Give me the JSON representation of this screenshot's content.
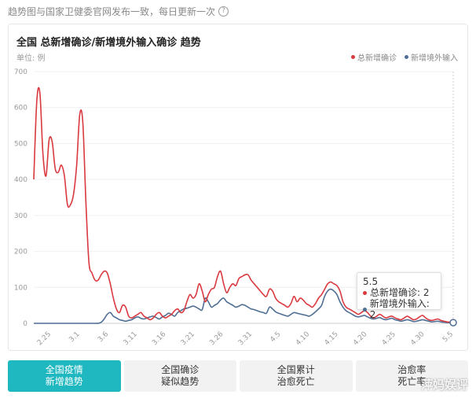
{
  "note": {
    "text": "趋势图与国家卫健委官网发布一致，每日更新一次",
    "icon": "help-icon"
  },
  "card": {
    "title": "全国 总新增确诊/新增境外输入确诊 趋势",
    "unit": "单位: 例"
  },
  "colors": {
    "total": "#d9393f",
    "imported": "#4f6e94",
    "accent": "#1fb7c0"
  },
  "chart_data": {
    "type": "line",
    "ylim": [
      0,
      700
    ],
    "yticks": [
      0,
      100,
      200,
      300,
      400,
      500,
      600,
      700
    ],
    "xlabels": [
      "2.25",
      "3.1",
      "3.6",
      "3.11",
      "3.16",
      "3.21",
      "3.26",
      "3.31",
      "4.5",
      "4.10",
      "4.15",
      "4.20",
      "4.25",
      "4.30",
      "5.5"
    ],
    "series": [
      {
        "name": "总新增确诊",
        "color": "#d9393f",
        "values": [
          400,
          620,
          640,
          470,
          410,
          510,
          505,
          430,
          420,
          440,
          410,
          330,
          330,
          360,
          440,
          580,
          560,
          340,
          170,
          140,
          120,
          120,
          135,
          145,
          140,
          110,
          70,
          40,
          30,
          50,
          45,
          20,
          15,
          20,
          25,
          30,
          20,
          15,
          10,
          15,
          25,
          30,
          20,
          15,
          20,
          25,
          35,
          40,
          30,
          35,
          60,
          80,
          70,
          80,
          110,
          90,
          60,
          80,
          95,
          100,
          130,
          145,
          110,
          85,
          100,
          110,
          105,
          125,
          130,
          135,
          135,
          120,
          110,
          100,
          90,
          80,
          75,
          95,
          90,
          70,
          60,
          55,
          50,
          45,
          55,
          75,
          60,
          70,
          65,
          55,
          50,
          45,
          55,
          70,
          80,
          95,
          110,
          115,
          110,
          105,
          90,
          60,
          45,
          40,
          35,
          30,
          25,
          30,
          35,
          30,
          20,
          15,
          20,
          25,
          20,
          15,
          18,
          20,
          15,
          12,
          10,
          15,
          20,
          15,
          10,
          12,
          18,
          22,
          15,
          10,
          8,
          10,
          12,
          8,
          6,
          4,
          3,
          2
        ]
      },
      {
        "name": "新增境外输入",
        "color": "#4f6e94",
        "values": [
          0,
          0,
          0,
          0,
          0,
          0,
          0,
          0,
          0,
          0,
          0,
          0,
          0,
          0,
          0,
          0,
          0,
          0,
          0,
          0,
          0,
          0,
          3,
          12,
          25,
          30,
          20,
          15,
          10,
          8,
          6,
          8,
          10,
          15,
          18,
          14,
          12,
          15,
          18,
          20,
          16,
          12,
          18,
          22,
          28,
          25,
          20,
          30,
          35,
          40,
          42,
          45,
          48,
          45,
          40,
          38,
          70,
          60,
          45,
          50,
          55,
          65,
          70,
          60,
          55,
          50,
          45,
          48,
          52,
          50,
          45,
          40,
          38,
          35,
          32,
          30,
          28,
          45,
          40,
          32,
          28,
          25,
          22,
          20,
          25,
          30,
          28,
          26,
          24,
          22,
          20,
          25,
          32,
          40,
          50,
          75,
          90,
          95,
          90,
          80,
          60,
          45,
          35,
          30,
          25,
          20,
          18,
          20,
          22,
          18,
          14,
          12,
          14,
          16,
          12,
          10,
          12,
          14,
          10,
          8,
          6,
          8,
          10,
          8,
          5,
          6,
          8,
          10,
          8,
          6,
          4,
          5,
          6,
          4,
          3,
          2,
          2,
          2
        ]
      }
    ],
    "tooltip": {
      "date": "5.5",
      "total_label": "总新增确诊: 2",
      "imported_label": "新增境外输入: 2"
    }
  },
  "tabs": [
    {
      "line1": "全国疫情",
      "line2": "新增趋势",
      "active": true
    },
    {
      "line1": "全国确诊",
      "line2": "疑似趋势",
      "active": false
    },
    {
      "line1": "全国累计",
      "line2": "治愈死亡",
      "active": false
    },
    {
      "line1": "治愈率",
      "line2": "死亡率",
      "active": false
    }
  ],
  "watermark": "萍妈娱评"
}
